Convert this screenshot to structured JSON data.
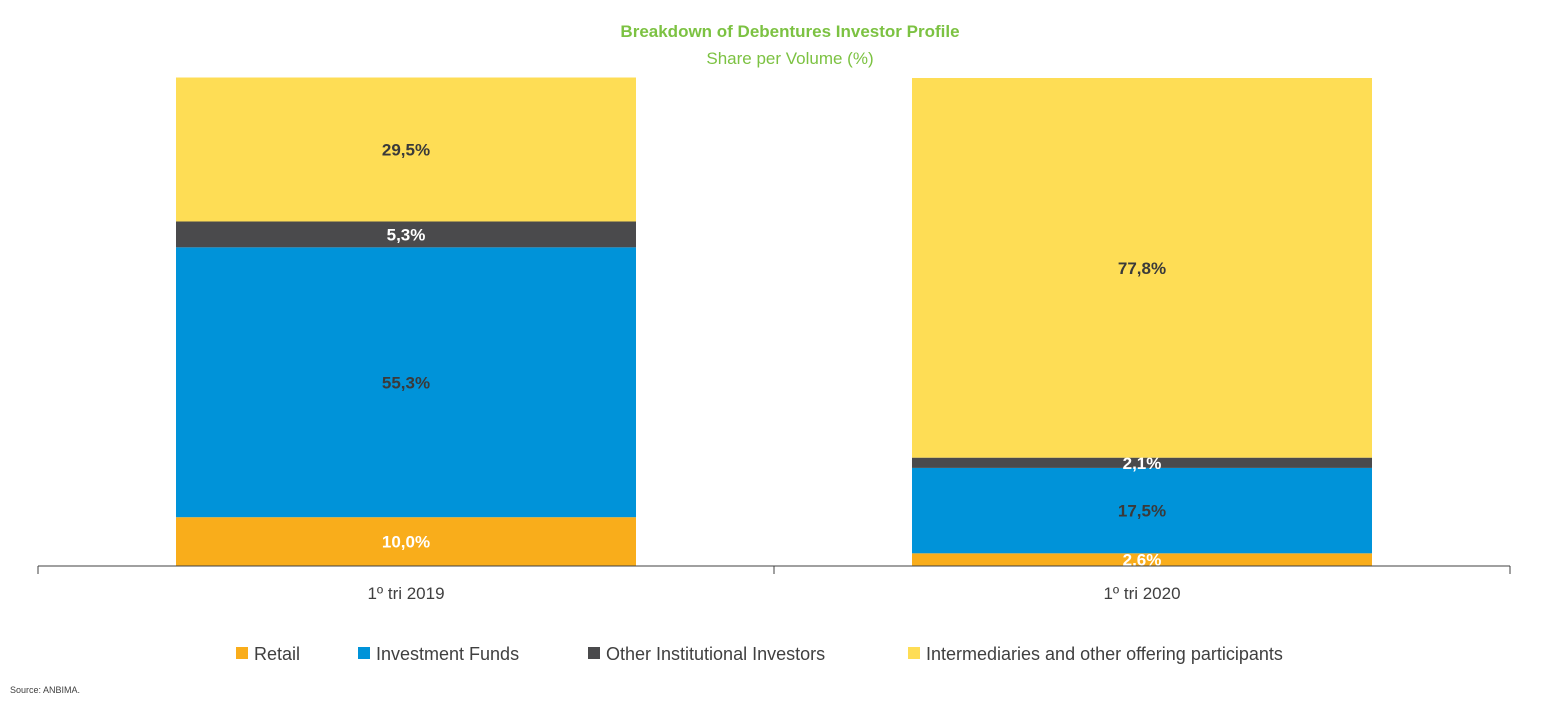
{
  "chart_data": {
    "type": "bar",
    "stacked": true,
    "title": "Breakdown of Debentures Investor Profile",
    "subtitle": "Share per Volume (%)",
    "categories": [
      "1º tri 2019",
      "1º tri 2020"
    ],
    "ylim": [
      0,
      100
    ],
    "grid": false,
    "legend_position": "bottom",
    "series": [
      {
        "name": "Retail",
        "values": [
          10.0,
          2.6
        ],
        "labels": [
          "10,0%",
          "2,6%"
        ],
        "color": "#f9ad1b",
        "label_color": "#ffffff"
      },
      {
        "name": "Investment Funds",
        "values": [
          55.3,
          17.5
        ],
        "labels": [
          "55,3%",
          "17,5%"
        ],
        "color": "#0093d9",
        "label_color": "#3a3a3a"
      },
      {
        "name": "Other Institutional Investors",
        "values": [
          5.3,
          2.1
        ],
        "labels": [
          "5,3%",
          "2,1%"
        ],
        "color": "#4a4a4c",
        "label_color": "#ffffff"
      },
      {
        "name": "Intermediaries and other offering participants",
        "values": [
          29.5,
          77.8
        ],
        "labels": [
          "29,5%",
          "77,8%"
        ],
        "color": "#fedd55",
        "label_color": "#3a3a3a"
      }
    ]
  },
  "footer": {
    "source": "Source: ANBIMA."
  }
}
